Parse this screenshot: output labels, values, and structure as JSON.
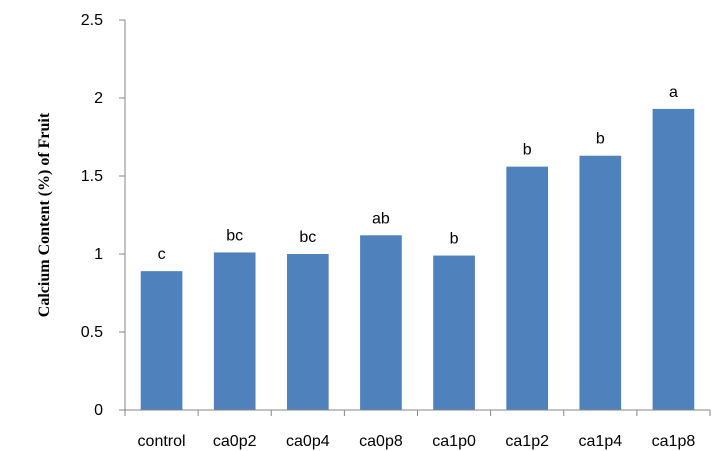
{
  "chart_data": {
    "type": "bar",
    "title": "",
    "xlabel": "",
    "ylabel": "Calcium Content (%) of Fruit",
    "ylim": [
      0,
      2.5
    ],
    "yticks": [
      0,
      0.5,
      1,
      1.5,
      2,
      2.5
    ],
    "ytick_labels": [
      "0",
      "0.5",
      "1",
      "1.5",
      "2",
      "2.5"
    ],
    "grid": false,
    "legend": "none",
    "categories": [
      "control",
      "ca0p2",
      "ca0p4",
      "ca0p8",
      "ca1p0",
      "ca1p2",
      "ca1p4",
      "ca1p8"
    ],
    "values": [
      0.89,
      1.01,
      1.0,
      1.12,
      0.99,
      1.56,
      1.63,
      1.93
    ],
    "labels": [
      "c",
      "bc",
      "bc",
      "ab",
      "b",
      "b",
      "b",
      "a"
    ],
    "bar_color": "#4f81bd",
    "axis_color": "#868686"
  }
}
